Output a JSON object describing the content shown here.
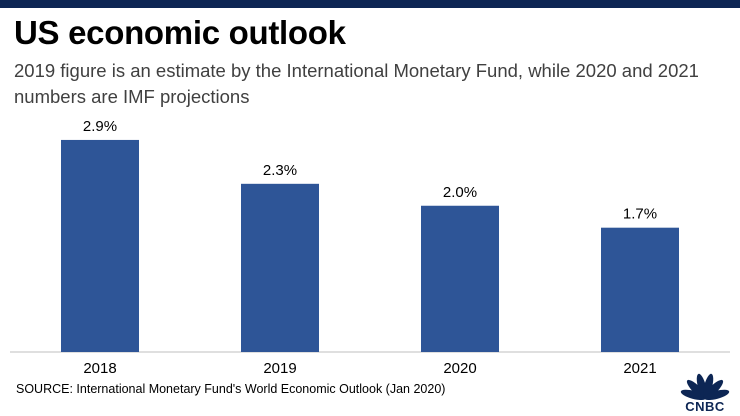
{
  "header": {
    "title": "US economic outlook",
    "subtitle": "2019 figure is an estimate by the International Monetary Fund, while 2020 and 2021 numbers are IMF projections"
  },
  "source": "SOURCE: International Monetary Fund's World Economic Outlook (Jan 2020)",
  "logo": {
    "text": "CNBC",
    "icon": "peacock-icon"
  },
  "colors": {
    "bar": "#2e5597",
    "top_bar": "#0d2654",
    "axis": "#bfbfbf"
  },
  "chart_data": {
    "type": "bar",
    "title": "US economic outlook",
    "categories": [
      "2018",
      "2019",
      "2020",
      "2021"
    ],
    "values": [
      2.9,
      2.3,
      2.0,
      1.7
    ],
    "data_labels": [
      "2.9%",
      "2.3%",
      "2.0%",
      "1.7%"
    ],
    "xlabel": "",
    "ylabel": "",
    "ylim": [
      0,
      3.2
    ],
    "grid": false,
    "legend": "none"
  }
}
